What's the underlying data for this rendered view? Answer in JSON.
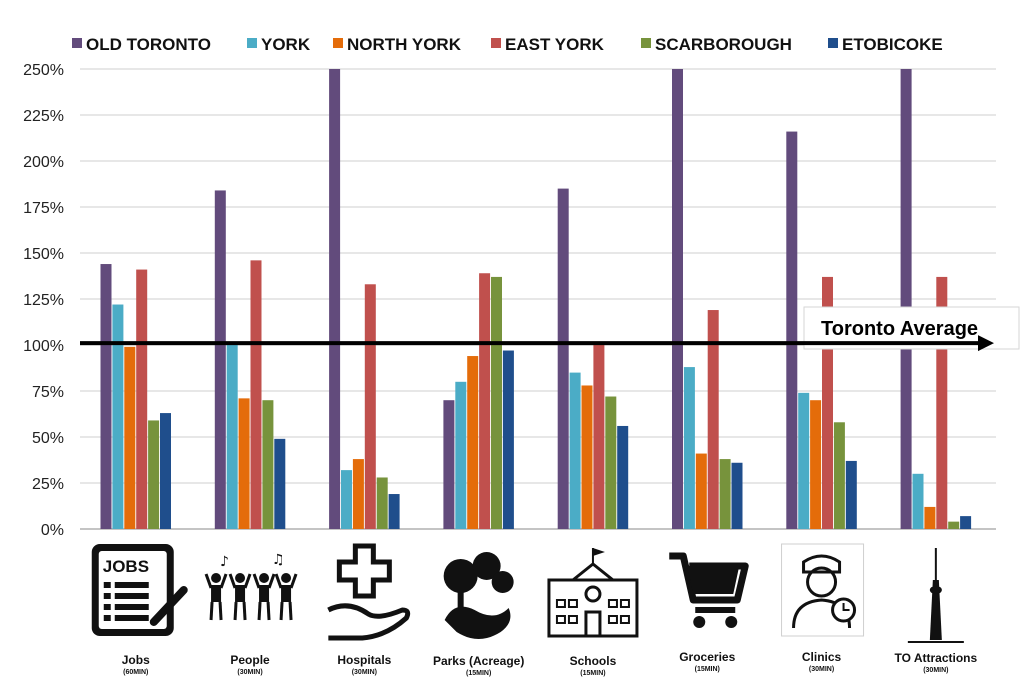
{
  "chart_data": {
    "type": "bar",
    "categories": [
      "Jobs",
      "People",
      "Hospitals",
      "Parks (Acreage)",
      "Schools",
      "Groceries",
      "Clinics",
      "TO Attractions"
    ],
    "category_subtitles": [
      "(60MIN)",
      "(30MIN)",
      "(30MIN)",
      "(15MIN)",
      "(15MIN)",
      "(15MIN)",
      "(30MIN)",
      "(30MIN)"
    ],
    "category_icons": [
      "jobs-icon",
      "people-icon",
      "hospital-icon",
      "parks-icon",
      "school-icon",
      "grocery-cart-icon",
      "clinic-doctor-icon",
      "cn-tower-icon"
    ],
    "series": [
      {
        "name": "OLD TORONTO",
        "color": "#624B7C",
        "values": [
          144,
          184,
          250,
          70,
          185,
          250,
          216,
          250
        ]
      },
      {
        "name": "YORK",
        "color": "#4BACC6",
        "values": [
          122,
          100,
          32,
          80,
          85,
          88,
          74,
          30
        ]
      },
      {
        "name": "NORTH YORK",
        "color": "#E46C0A",
        "values": [
          99,
          71,
          38,
          94,
          78,
          41,
          70,
          12
        ]
      },
      {
        "name": "EAST YORK",
        "color": "#C0504D",
        "values": [
          141,
          146,
          133,
          139,
          101,
          119,
          137,
          137
        ]
      },
      {
        "name": "SCARBOROUGH",
        "color": "#77933C",
        "values": [
          59,
          70,
          28,
          137,
          72,
          38,
          58,
          4
        ]
      },
      {
        "name": "ETOBICOKE",
        "color": "#1F4E8C",
        "values": [
          63,
          49,
          19,
          97,
          56,
          36,
          37,
          7
        ]
      }
    ],
    "yticks": [
      "0%",
      "25%",
      "50%",
      "75%",
      "100%",
      "125%",
      "150%",
      "175%",
      "200%",
      "225%",
      "250%"
    ],
    "ylim": [
      0,
      250
    ],
    "grid": true,
    "legend_position": "top",
    "annotation": {
      "label": "Toronto Average",
      "value": 101
    }
  }
}
